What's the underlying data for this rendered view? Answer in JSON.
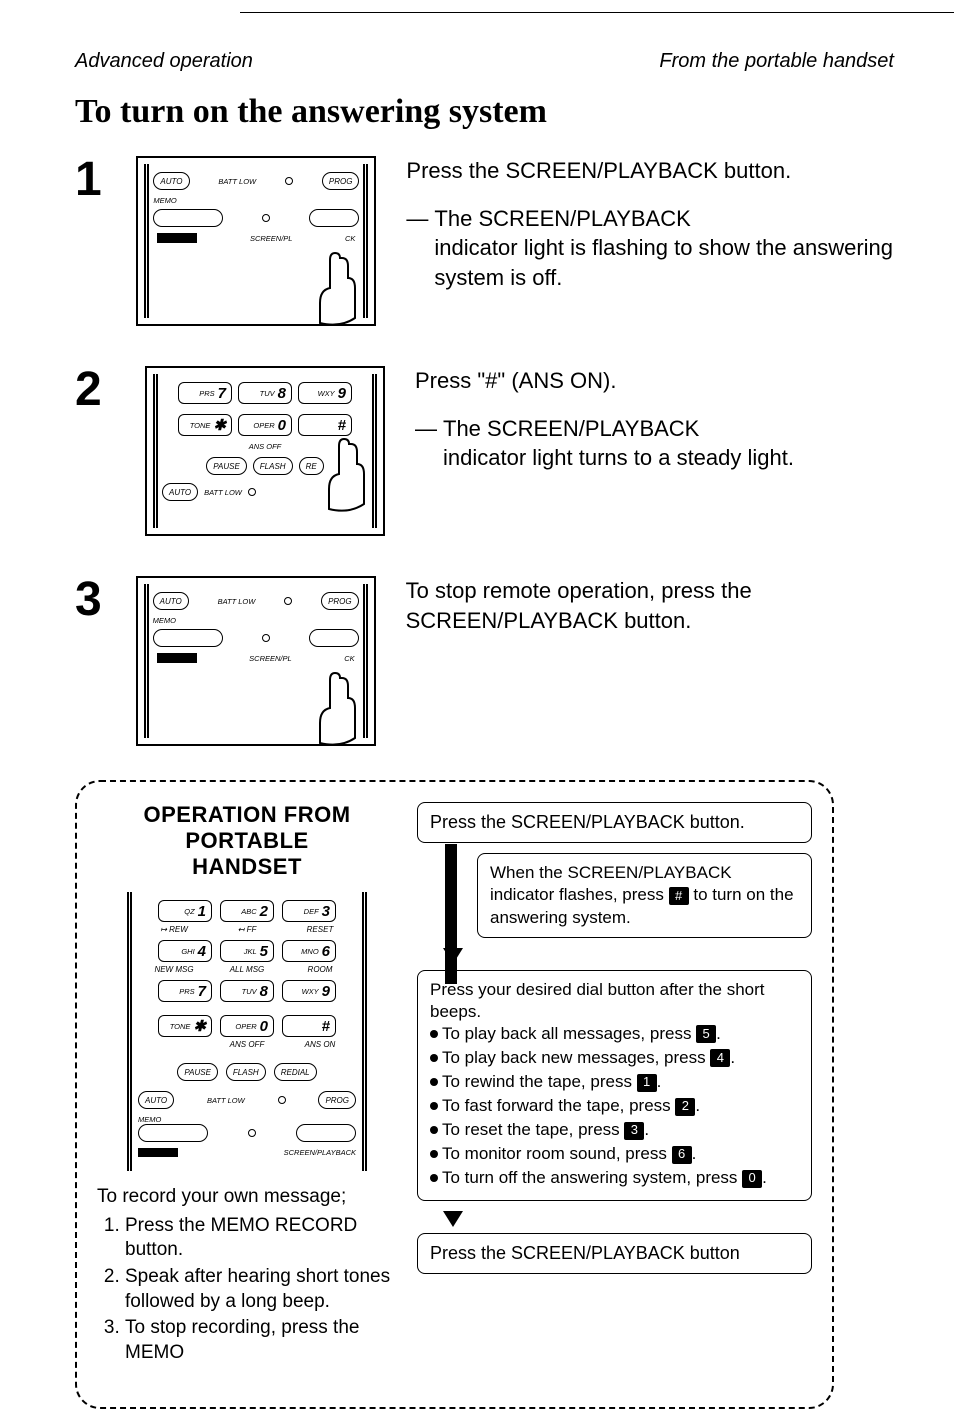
{
  "header": {
    "left": "Advanced operation",
    "right": "From the portable handset"
  },
  "title": "To turn on the answering system",
  "steps": [
    {
      "num": "1",
      "para1": "Press the SCREEN/PLAYBACK button.",
      "dash": "—",
      "para2a": "The SCREEN/PLAYBACK",
      "para2b": "indicator light is flashing to show the answering system is off.",
      "diagram": {
        "auto": "AUTO",
        "batt": "BATT LOW",
        "prog": "PROG",
        "memo": "MEMO",
        "screen": "SCREEN/PL",
        "ck": "CK"
      }
    },
    {
      "num": "2",
      "para1": "Press \"#\" (ANS ON).",
      "dash": "—",
      "para2a": "The SCREEN/PLAYBACK",
      "para2b": "indicator light turns to a steady light.",
      "diagram": {
        "keys": [
          {
            "l": "PRS",
            "n": "7"
          },
          {
            "l": "TUV",
            "n": "8"
          },
          {
            "l": "WXY",
            "n": "9"
          },
          {
            "l": "TONE",
            "n": "✱"
          },
          {
            "l": "OPER",
            "n": "0"
          },
          {
            "l": "",
            "n": "#"
          }
        ],
        "ansoff": "ANS OFF",
        "pause": "PAUSE",
        "flash": "FLASH",
        "re": "RE",
        "auto": "AUTO",
        "batt": "BATT LOW"
      }
    },
    {
      "num": "3",
      "para1": "To stop remote operation, press the SCREEN/PLAYBACK button.",
      "diagram": {
        "auto": "AUTO",
        "batt": "BATT LOW",
        "prog": "PROG",
        "memo": "MEMO",
        "screen": "SCREEN/PL",
        "ck": "CK"
      }
    }
  ],
  "op": {
    "title1": "OPERATION FROM PORTABLE",
    "title2": "HANDSET",
    "keypad": {
      "rows": [
        [
          {
            "l": "QZ",
            "n": "1"
          },
          {
            "l": "ABC",
            "n": "2"
          },
          {
            "l": "DEF",
            "n": "3"
          }
        ],
        [
          {
            "l": "GHI",
            "n": "4"
          },
          {
            "l": "JKL",
            "n": "5"
          },
          {
            "l": "MNO",
            "n": "6"
          }
        ],
        [
          {
            "l": "PRS",
            "n": "7"
          },
          {
            "l": "TUV",
            "n": "8"
          },
          {
            "l": "WXY",
            "n": "9"
          }
        ],
        [
          {
            "l": "TONE",
            "n": "✱"
          },
          {
            "l": "OPER",
            "n": "0"
          },
          {
            "l": "",
            "n": "#"
          }
        ]
      ],
      "subrows": [
        [
          "↦ REW",
          "↤ FF",
          "RESET"
        ],
        [
          "NEW MSG",
          "ALL MSG",
          "ROOM"
        ],
        [
          "",
          "",
          ""
        ],
        [
          "",
          "ANS OFF",
          "ANS ON"
        ]
      ],
      "pills": [
        "PAUSE",
        "FLASH",
        "REDIAL"
      ],
      "auto": "AUTO",
      "batt": "BATT LOW",
      "prog": "PROG",
      "memo": "MEMO",
      "screen": "SCREEN/PLAYBACK"
    },
    "record_intro": "To record your own message;",
    "record_steps": [
      "Press the MEMO RECORD button.",
      "Speak after hearing short tones followed by a long beep.",
      "To stop recording, press the MEMO"
    ]
  },
  "flow": {
    "box1": "Press the SCREEN/PLAYBACK button.",
    "box2a": "When the SCREEN/PLAYBACK indicator flashes, press",
    "box2_key": "#",
    "box2b": "to turn on the answering system.",
    "box3_intro": "Press your desired dial button after the short beeps.",
    "bullets": [
      {
        "t": "To play back all messages, press",
        "k": "5",
        "tail": "."
      },
      {
        "t": "To play back new messages, press",
        "k": "4",
        "tail": "."
      },
      {
        "t": "To rewind the tape, press",
        "k": "1",
        "tail": "."
      },
      {
        "t": "To fast forward the tape, press",
        "k": "2",
        "tail": "."
      },
      {
        "t": "To reset the tape, press",
        "k": "3",
        "tail": "."
      },
      {
        "t": "To monitor room sound, press",
        "k": "6",
        "tail": "."
      },
      {
        "t": "To turn off the answering system, press",
        "k": "0",
        "tail": "."
      }
    ],
    "box4": "Press the SCREEN/PLAYBACK button"
  }
}
